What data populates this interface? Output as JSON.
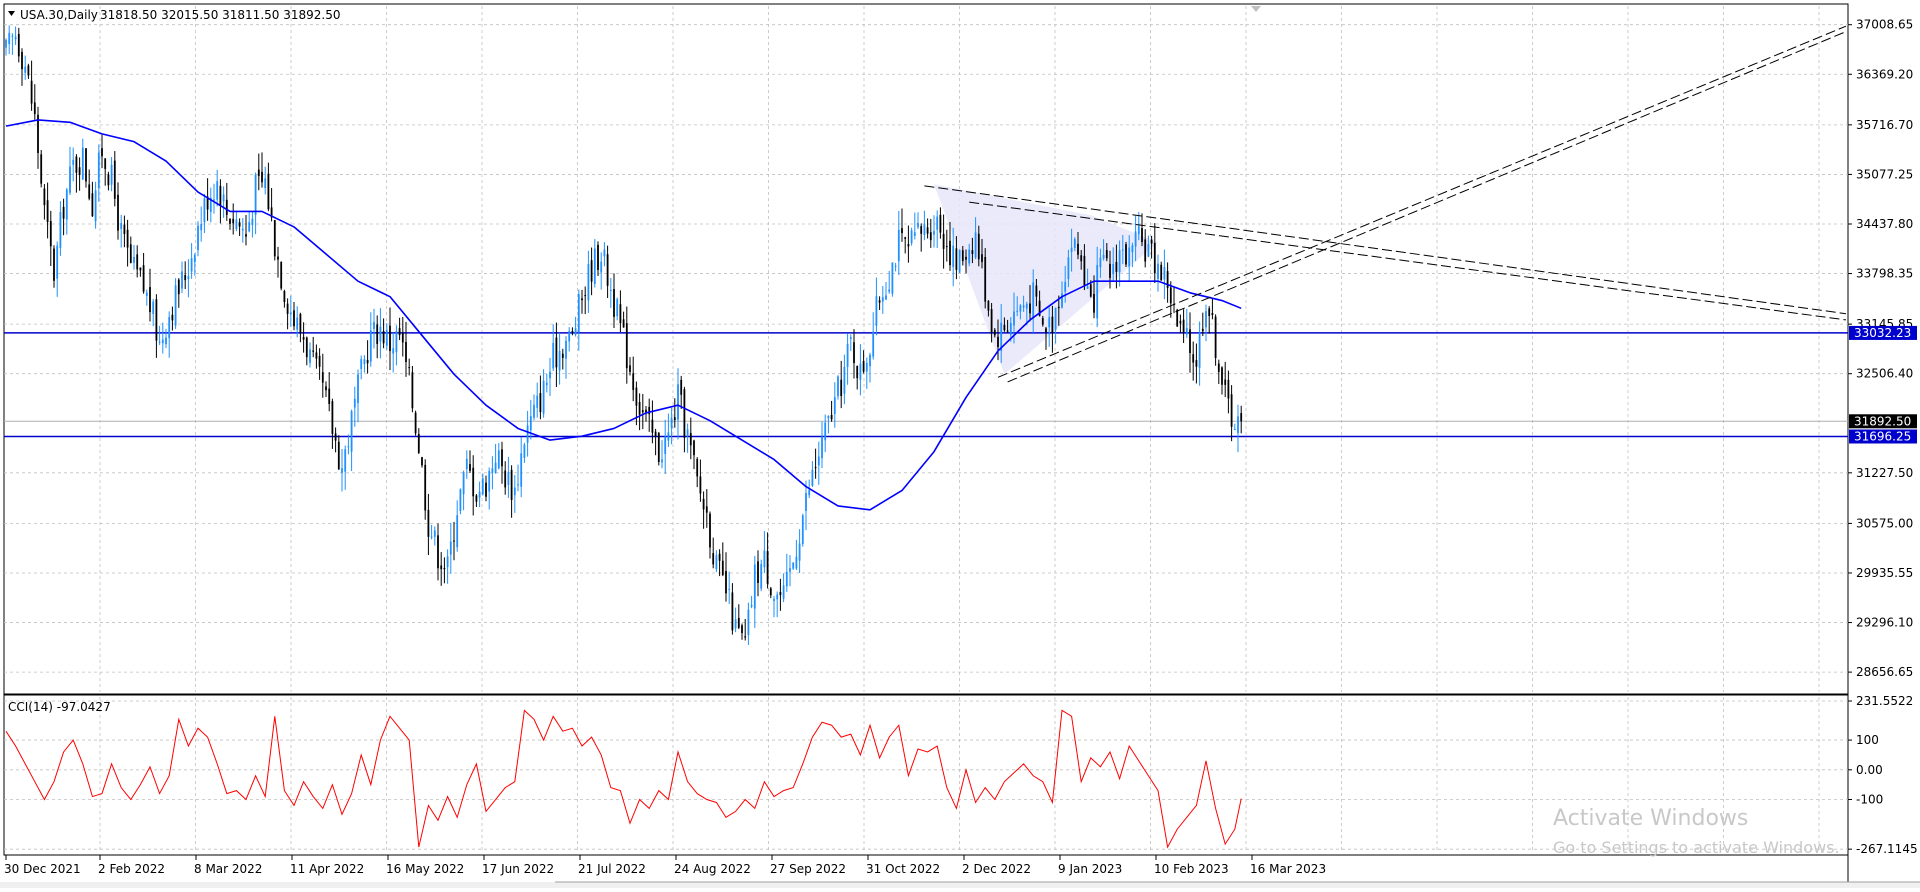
{
  "header": {
    "symbol_label": "USA.30,Daily",
    "ohlc": "31818.50 32015.50 31811.50 31892.50"
  },
  "indicator": {
    "label": "CCI(14) -97.0427"
  },
  "watermark": {
    "title": "Activate Windows",
    "subtitle": "Go to Settings to activate Windows."
  },
  "colors": {
    "bull_candle": "#1e90ff",
    "bear_candle": "#000000",
    "moving_average": "#0000ff",
    "horizontal_line": "#0000cd",
    "price_tag": "#0000cd",
    "cci_line": "#ff0000",
    "triangle_fill": "#e6e6fa",
    "grid": "#c0c0c0"
  },
  "chart_data": [
    {
      "type": "candlestick",
      "title": "USA.30,Daily",
      "x_tick_labels": [
        "30 Dec 2021",
        "2 Feb 2022",
        "8 Mar 2022",
        "11 Apr 2022",
        "16 May 2022",
        "17 Jun 2022",
        "21 Jul 2022",
        "24 Aug 2022",
        "27 Sep 2022",
        "31 Oct 2022",
        "2 Dec 2022",
        "9 Jan 2023",
        "10 Feb 2023",
        "16 Mar 2023"
      ],
      "y_tick_labels": [
        "37008.65",
        "36369.20",
        "35716.70",
        "35077.25",
        "34437.80",
        "33798.35",
        "33145.85",
        "32506.40",
        "31227.50",
        "30575.00",
        "29935.55",
        "29296.10",
        "28656.65"
      ],
      "ylim": [
        28400,
        37250
      ],
      "last_price": "31892.50",
      "horizontal_levels": [
        {
          "value": 33032.23,
          "label": "33032.23"
        },
        {
          "value": 31696.25,
          "label": "31696.25"
        }
      ],
      "close_series": [
        [
          0,
          36650
        ],
        [
          3,
          36900
        ],
        [
          6,
          36500
        ],
        [
          9,
          35800
        ],
        [
          12,
          34600
        ],
        [
          15,
          33800
        ],
        [
          18,
          34700
        ],
        [
          21,
          35200
        ],
        [
          24,
          35300
        ],
        [
          27,
          34700
        ],
        [
          30,
          35400
        ],
        [
          33,
          35000
        ],
        [
          36,
          34300
        ],
        [
          39,
          33900
        ],
        [
          42,
          33700
        ],
        [
          45,
          33400
        ],
        [
          48,
          32900
        ],
        [
          51,
          33300
        ],
        [
          54,
          33600
        ],
        [
          57,
          33900
        ],
        [
          60,
          34400
        ],
        [
          63,
          34800
        ],
        [
          66,
          35000
        ],
        [
          69,
          34600
        ],
        [
          72,
          34500
        ],
        [
          75,
          34300
        ],
        [
          78,
          34900
        ],
        [
          81,
          35000
        ],
        [
          84,
          34200
        ],
        [
          87,
          33600
        ],
        [
          90,
          33200
        ],
        [
          93,
          33000
        ],
        [
          96,
          32600
        ],
        [
          99,
          32300
        ],
        [
          102,
          31800
        ],
        [
          105,
          31300
        ],
        [
          108,
          31900
        ],
        [
          111,
          32500
        ],
        [
          114,
          33000
        ],
        [
          117,
          33100
        ],
        [
          120,
          32900
        ],
        [
          123,
          33000
        ],
        [
          126,
          32400
        ],
        [
          129,
          31600
        ],
        [
          132,
          30600
        ],
        [
          135,
          30200
        ],
        [
          138,
          30000
        ],
        [
          141,
          30800
        ],
        [
          144,
          31300
        ],
        [
          147,
          31000
        ],
        [
          150,
          31100
        ],
        [
          153,
          31500
        ],
        [
          156,
          31200
        ],
        [
          159,
          31000
        ],
        [
          162,
          31700
        ],
        [
          165,
          32000
        ],
        [
          168,
          32300
        ],
        [
          171,
          32700
        ],
        [
          174,
          32900
        ],
        [
          177,
          33000
        ],
        [
          180,
          33500
        ],
        [
          183,
          33900
        ],
        [
          186,
          34100
        ],
        [
          189,
          33600
        ],
        [
          192,
          33100
        ],
        [
          195,
          32600
        ],
        [
          198,
          32100
        ],
        [
          201,
          31800
        ],
        [
          204,
          31500
        ],
        [
          207,
          31700
        ],
        [
          210,
          32200
        ],
        [
          213,
          31700
        ],
        [
          216,
          31100
        ],
        [
          219,
          30700
        ],
        [
          222,
          30000
        ],
        [
          225,
          29700
        ],
        [
          228,
          29200
        ],
        [
          231,
          29000
        ],
        [
          234,
          29900
        ],
        [
          237,
          30100
        ],
        [
          240,
          29700
        ],
        [
          243,
          29600
        ],
        [
          246,
          30100
        ],
        [
          249,
          30700
        ],
        [
          252,
          31200
        ],
        [
          255,
          31600
        ],
        [
          258,
          32000
        ],
        [
          261,
          32400
        ],
        [
          264,
          32900
        ],
        [
          267,
          32500
        ],
        [
          270,
          32900
        ],
        [
          273,
          33500
        ],
        [
          276,
          33800
        ],
        [
          279,
          34200
        ],
        [
          282,
          34100
        ],
        [
          285,
          34300
        ],
        [
          288,
          34400
        ],
        [
          291,
          34500
        ],
        [
          294,
          34200
        ],
        [
          297,
          33900
        ],
        [
          300,
          34100
        ],
        [
          303,
          34300
        ],
        [
          306,
          33600
        ],
        [
          309,
          33000
        ],
        [
          312,
          33100
        ],
        [
          315,
          33300
        ],
        [
          318,
          33400
        ],
        [
          321,
          33500
        ],
        [
          324,
          33100
        ],
        [
          327,
          33200
        ],
        [
          330,
          33700
        ],
        [
          333,
          34200
        ],
        [
          336,
          34000
        ],
        [
          339,
          33300
        ],
        [
          342,
          33900
        ],
        [
          345,
          33800
        ],
        [
          348,
          34100
        ],
        [
          351,
          34000
        ],
        [
          354,
          34200
        ],
        [
          357,
          34100
        ],
        [
          360,
          33900
        ],
        [
          363,
          33700
        ],
        [
          366,
          33100
        ],
        [
          369,
          32900
        ],
        [
          372,
          32700
        ],
        [
          375,
          33500
        ],
        [
          378,
          32900
        ],
        [
          381,
          32200
        ],
        [
          384,
          31900
        ],
        [
          386,
          31892.5
        ]
      ],
      "moving_average_series": [
        [
          0,
          35700
        ],
        [
          10,
          35780
        ],
        [
          20,
          35750
        ],
        [
          30,
          35600
        ],
        [
          40,
          35500
        ],
        [
          50,
          35250
        ],
        [
          60,
          34850
        ],
        [
          70,
          34600
        ],
        [
          80,
          34600
        ],
        [
          90,
          34400
        ],
        [
          100,
          34050
        ],
        [
          110,
          33700
        ],
        [
          120,
          33500
        ],
        [
          130,
          33000
        ],
        [
          140,
          32500
        ],
        [
          150,
          32100
        ],
        [
          160,
          31800
        ],
        [
          170,
          31650
        ],
        [
          180,
          31700
        ],
        [
          190,
          31800
        ],
        [
          200,
          32000
        ],
        [
          210,
          32100
        ],
        [
          220,
          31900
        ],
        [
          230,
          31650
        ],
        [
          240,
          31400
        ],
        [
          250,
          31050
        ],
        [
          260,
          30800
        ],
        [
          270,
          30750
        ],
        [
          280,
          31000
        ],
        [
          290,
          31500
        ],
        [
          300,
          32200
        ],
        [
          310,
          32800
        ],
        [
          320,
          33200
        ],
        [
          330,
          33500
        ],
        [
          340,
          33700
        ],
        [
          350,
          33700
        ],
        [
          360,
          33700
        ],
        [
          370,
          33550
        ],
        [
          380,
          33450
        ],
        [
          386,
          33350
        ]
      ]
    },
    {
      "type": "line",
      "title": "CCI(14) -97.0427",
      "y_tick_labels": [
        "231.5522",
        "100",
        "0.00",
        "-100",
        "-267.1145"
      ],
      "ylim": [
        -280,
        245
      ],
      "series": [
        {
          "values": [
            [
              0,
              130
            ],
            [
              3,
              80
            ],
            [
              6,
              20
            ],
            [
              9,
              -40
            ],
            [
              12,
              -100
            ],
            [
              15,
              -40
            ],
            [
              18,
              60
            ],
            [
              21,
              100
            ],
            [
              24,
              20
            ],
            [
              27,
              -90
            ],
            [
              30,
              -80
            ],
            [
              33,
              20
            ],
            [
              36,
              -60
            ],
            [
              39,
              -100
            ],
            [
              42,
              -50
            ],
            [
              45,
              10
            ],
            [
              48,
              -80
            ],
            [
              51,
              -20
            ],
            [
              54,
              170
            ],
            [
              57,
              80
            ],
            [
              60,
              140
            ],
            [
              63,
              110
            ],
            [
              66,
              20
            ],
            [
              69,
              -80
            ],
            [
              72,
              -70
            ],
            [
              75,
              -100
            ],
            [
              78,
              -20
            ],
            [
              81,
              -90
            ],
            [
              84,
              180
            ],
            [
              87,
              -70
            ],
            [
              90,
              -120
            ],
            [
              93,
              -40
            ],
            [
              96,
              -90
            ],
            [
              99,
              -130
            ],
            [
              102,
              -50
            ],
            [
              105,
              -150
            ],
            [
              108,
              -80
            ],
            [
              111,
              50
            ],
            [
              114,
              -50
            ],
            [
              117,
              100
            ],
            [
              120,
              180
            ],
            [
              123,
              140
            ],
            [
              126,
              100
            ],
            [
              129,
              -260
            ],
            [
              132,
              -120
            ],
            [
              135,
              -170
            ],
            [
              138,
              -90
            ],
            [
              141,
              -160
            ],
            [
              144,
              -50
            ],
            [
              147,
              20
            ],
            [
              150,
              -140
            ],
            [
              153,
              -100
            ],
            [
              156,
              -60
            ],
            [
              159,
              -40
            ],
            [
              162,
              200
            ],
            [
              165,
              170
            ],
            [
              168,
              100
            ],
            [
              171,
              180
            ],
            [
              174,
              130
            ],
            [
              177,
              140
            ],
            [
              180,
              80
            ],
            [
              183,
              110
            ],
            [
              186,
              50
            ],
            [
              189,
              -60
            ],
            [
              192,
              -70
            ],
            [
              195,
              -180
            ],
            [
              198,
              -100
            ],
            [
              201,
              -130
            ],
            [
              204,
              -70
            ],
            [
              207,
              -100
            ],
            [
              210,
              60
            ],
            [
              213,
              -40
            ],
            [
              216,
              -80
            ],
            [
              219,
              -100
            ],
            [
              222,
              -110
            ],
            [
              225,
              -160
            ],
            [
              228,
              -140
            ],
            [
              231,
              -100
            ],
            [
              234,
              -130
            ],
            [
              237,
              -40
            ],
            [
              240,
              -90
            ],
            [
              243,
              -70
            ],
            [
              246,
              -60
            ],
            [
              249,
              20
            ],
            [
              252,
              110
            ],
            [
              255,
              160
            ],
            [
              258,
              150
            ],
            [
              261,
              110
            ],
            [
              264,
              120
            ],
            [
              267,
              50
            ],
            [
              270,
              150
            ],
            [
              273,
              40
            ],
            [
              276,
              110
            ],
            [
              279,
              150
            ],
            [
              282,
              -20
            ],
            [
              285,
              70
            ],
            [
              288,
              60
            ],
            [
              291,
              80
            ],
            [
              294,
              -60
            ],
            [
              297,
              -130
            ],
            [
              300,
              0
            ],
            [
              303,
              -110
            ],
            [
              306,
              -60
            ],
            [
              309,
              -100
            ],
            [
              312,
              -40
            ],
            [
              315,
              -10
            ],
            [
              318,
              20
            ],
            [
              321,
              -20
            ],
            [
              324,
              -40
            ],
            [
              327,
              -110
            ],
            [
              330,
              200
            ],
            [
              333,
              180
            ],
            [
              336,
              -40
            ],
            [
              339,
              40
            ],
            [
              342,
              10
            ],
            [
              345,
              60
            ],
            [
              348,
              -30
            ],
            [
              351,
              80
            ],
            [
              354,
              30
            ],
            [
              357,
              -20
            ],
            [
              360,
              -70
            ],
            [
              363,
              -260
            ],
            [
              366,
              -200
            ],
            [
              369,
              -160
            ],
            [
              372,
              -120
            ],
            [
              375,
              30
            ],
            [
              378,
              -130
            ],
            [
              381,
              -250
            ],
            [
              384,
              -200
            ],
            [
              386,
              -97.0427
            ]
          ]
        }
      ]
    }
  ]
}
